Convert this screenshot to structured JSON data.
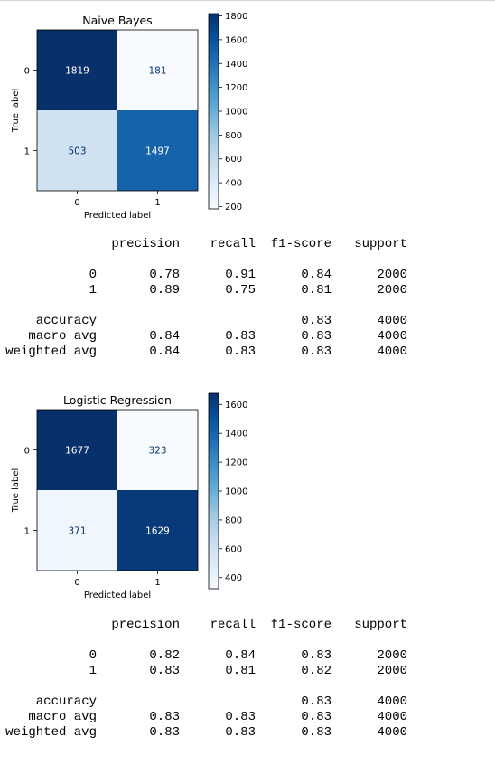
{
  "chart_data": [
    {
      "type": "heatmap",
      "title": "Naive Bayes",
      "xlabel": "Predicted label",
      "ylabel": "True label",
      "x_categories": [
        "0",
        "1"
      ],
      "y_categories": [
        "0",
        "1"
      ],
      "values": [
        [
          1819,
          181
        ],
        [
          503,
          1497
        ]
      ],
      "colormap": "Blues",
      "colorbar": {
        "vmin": 181,
        "vmax": 1819,
        "ticks": [
          "200",
          "400",
          "600",
          "800",
          "1000",
          "1200",
          "1400",
          "1600",
          "1800"
        ]
      }
    },
    {
      "type": "heatmap",
      "title": "Logistic Regression",
      "xlabel": "Predicted label",
      "ylabel": "True label",
      "x_categories": [
        "0",
        "1"
      ],
      "y_categories": [
        "0",
        "1"
      ],
      "values": [
        [
          1677,
          323
        ],
        [
          371,
          1629
        ]
      ],
      "colormap": "Blues",
      "colorbar": {
        "vmin": 323,
        "vmax": 1677,
        "ticks": [
          "400",
          "600",
          "800",
          "1000",
          "1200",
          "1400",
          "1600"
        ]
      }
    }
  ],
  "reports": [
    {
      "headers": [
        "precision",
        "recall",
        "f1-score",
        "support"
      ],
      "rows": [
        {
          "label": "0",
          "precision": "0.78",
          "recall": "0.91",
          "f1": "0.84",
          "support": "2000"
        },
        {
          "label": "1",
          "precision": "0.89",
          "recall": "0.75",
          "f1": "0.81",
          "support": "2000"
        }
      ],
      "summary": [
        {
          "label": "accuracy",
          "precision": "",
          "recall": "",
          "f1": "0.83",
          "support": "4000"
        },
        {
          "label": "macro avg",
          "precision": "0.84",
          "recall": "0.83",
          "f1": "0.83",
          "support": "4000"
        },
        {
          "label": "weighted avg",
          "precision": "0.84",
          "recall": "0.83",
          "f1": "0.83",
          "support": "4000"
        }
      ]
    },
    {
      "headers": [
        "precision",
        "recall",
        "f1-score",
        "support"
      ],
      "rows": [
        {
          "label": "0",
          "precision": "0.82",
          "recall": "0.84",
          "f1": "0.83",
          "support": "2000"
        },
        {
          "label": "1",
          "precision": "0.83",
          "recall": "0.81",
          "f1": "0.82",
          "support": "2000"
        }
      ],
      "summary": [
        {
          "label": "accuracy",
          "precision": "",
          "recall": "",
          "f1": "0.83",
          "support": "4000"
        },
        {
          "label": "macro avg",
          "precision": "0.83",
          "recall": "0.83",
          "f1": "0.83",
          "support": "4000"
        },
        {
          "label": "weighted avg",
          "precision": "0.83",
          "recall": "0.83",
          "f1": "0.83",
          "support": "4000"
        }
      ]
    }
  ]
}
